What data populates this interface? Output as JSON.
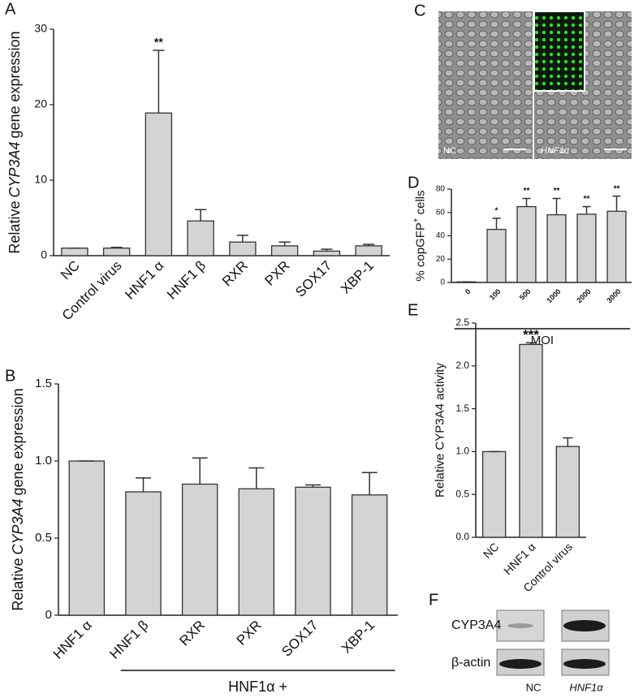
{
  "panel_labels": [
    "A",
    "B",
    "C",
    "D",
    "E",
    "F"
  ],
  "chart_data": [
    {
      "type": "bar",
      "y_label": [
        {
          "text": "Relative"
        },
        {
          "text": "CYP3A4",
          "italic": true
        },
        {
          "text": "gene expression"
        }
      ],
      "categories": [
        "NC",
        "Control virus",
        "HNF1 α",
        "HNF1 β",
        "RXR",
        "PXR",
        "SOX17",
        "XBP-1"
      ],
      "values": [
        1.0,
        1.0,
        18.9,
        4.6,
        1.8,
        1.3,
        0.6,
        1.3
      ],
      "errors": [
        0,
        0.1,
        8.3,
        1.5,
        0.9,
        0.5,
        0.25,
        0.2
      ],
      "significance": [
        null,
        null,
        "**",
        null,
        null,
        null,
        null,
        null
      ],
      "color": "#d4d4d4",
      "ylim": [
        0,
        30
      ],
      "yticks": [
        0,
        10,
        20,
        30
      ]
    },
    {
      "type": "bar",
      "y_label": [
        {
          "text": "Relative"
        },
        {
          "text": "CYP3A4",
          "italic": true
        },
        {
          "text": "gene expression"
        }
      ],
      "categories": [
        "HNF1 α",
        "HNF1 β",
        "RXR",
        "PXR",
        "SOX17",
        "XBP-1"
      ],
      "values": [
        1.0,
        0.8,
        0.85,
        0.82,
        0.83,
        0.78
      ],
      "errors": [
        0,
        0.09,
        0.17,
        0.135,
        0.015,
        0.145
      ],
      "x_label": "HNF1α +",
      "group_span": [
        1,
        5
      ],
      "color": "#d4d4d4",
      "ylim": [
        0,
        1.5
      ],
      "yticks": [
        0,
        0.5,
        {
          "value": 1,
          "label": "1.0"
        },
        1.5
      ]
    },
    {
      "type": "bar",
      "y_label": [
        {
          "text": "% copGFP"
        },
        {
          "text": "+",
          "superscript": true
        },
        {
          "text": "cells"
        }
      ],
      "categories": [
        "0",
        "100",
        "500",
        "1000",
        "2000",
        "3000"
      ],
      "values": [
        0.5,
        45.5,
        65,
        58,
        58.5,
        61
      ],
      "errors": [
        0,
        9.5,
        7,
        14,
        6.5,
        13
      ],
      "significance": [
        null,
        "*",
        "**",
        "**",
        "**",
        "**"
      ],
      "x_label": "MOI",
      "color": "#d4d4d4",
      "ylim": [
        0,
        80
      ],
      "yticks": [
        0,
        20,
        40,
        60,
        80
      ]
    },
    {
      "type": "bar",
      "y_label": [
        {
          "text": "Relative CYP3A4 activity"
        }
      ],
      "categories": [
        "NC",
        "HNF1 α",
        "Control virus"
      ],
      "values": [
        1.0,
        2.25,
        1.06
      ],
      "errors": [
        0,
        0.02,
        0.1
      ],
      "significance": [
        null,
        "***",
        null
      ],
      "color": "#d4d4d4",
      "ylim": [
        0,
        2.5
      ],
      "yticks": [
        {
          "value": 0,
          "label": "0.0"
        },
        0.5,
        {
          "value": 1,
          "label": "1.0"
        },
        1.5,
        {
          "value": 2,
          "label": "2.0"
        },
        2.5
      ]
    }
  ],
  "micrograph": {
    "left_label": "NC",
    "right_label": "HNF1α"
  },
  "blot": {
    "rows": [
      "CYP3A4",
      "β-actin"
    ],
    "lanes": [
      "NC",
      "HNF1α"
    ]
  }
}
